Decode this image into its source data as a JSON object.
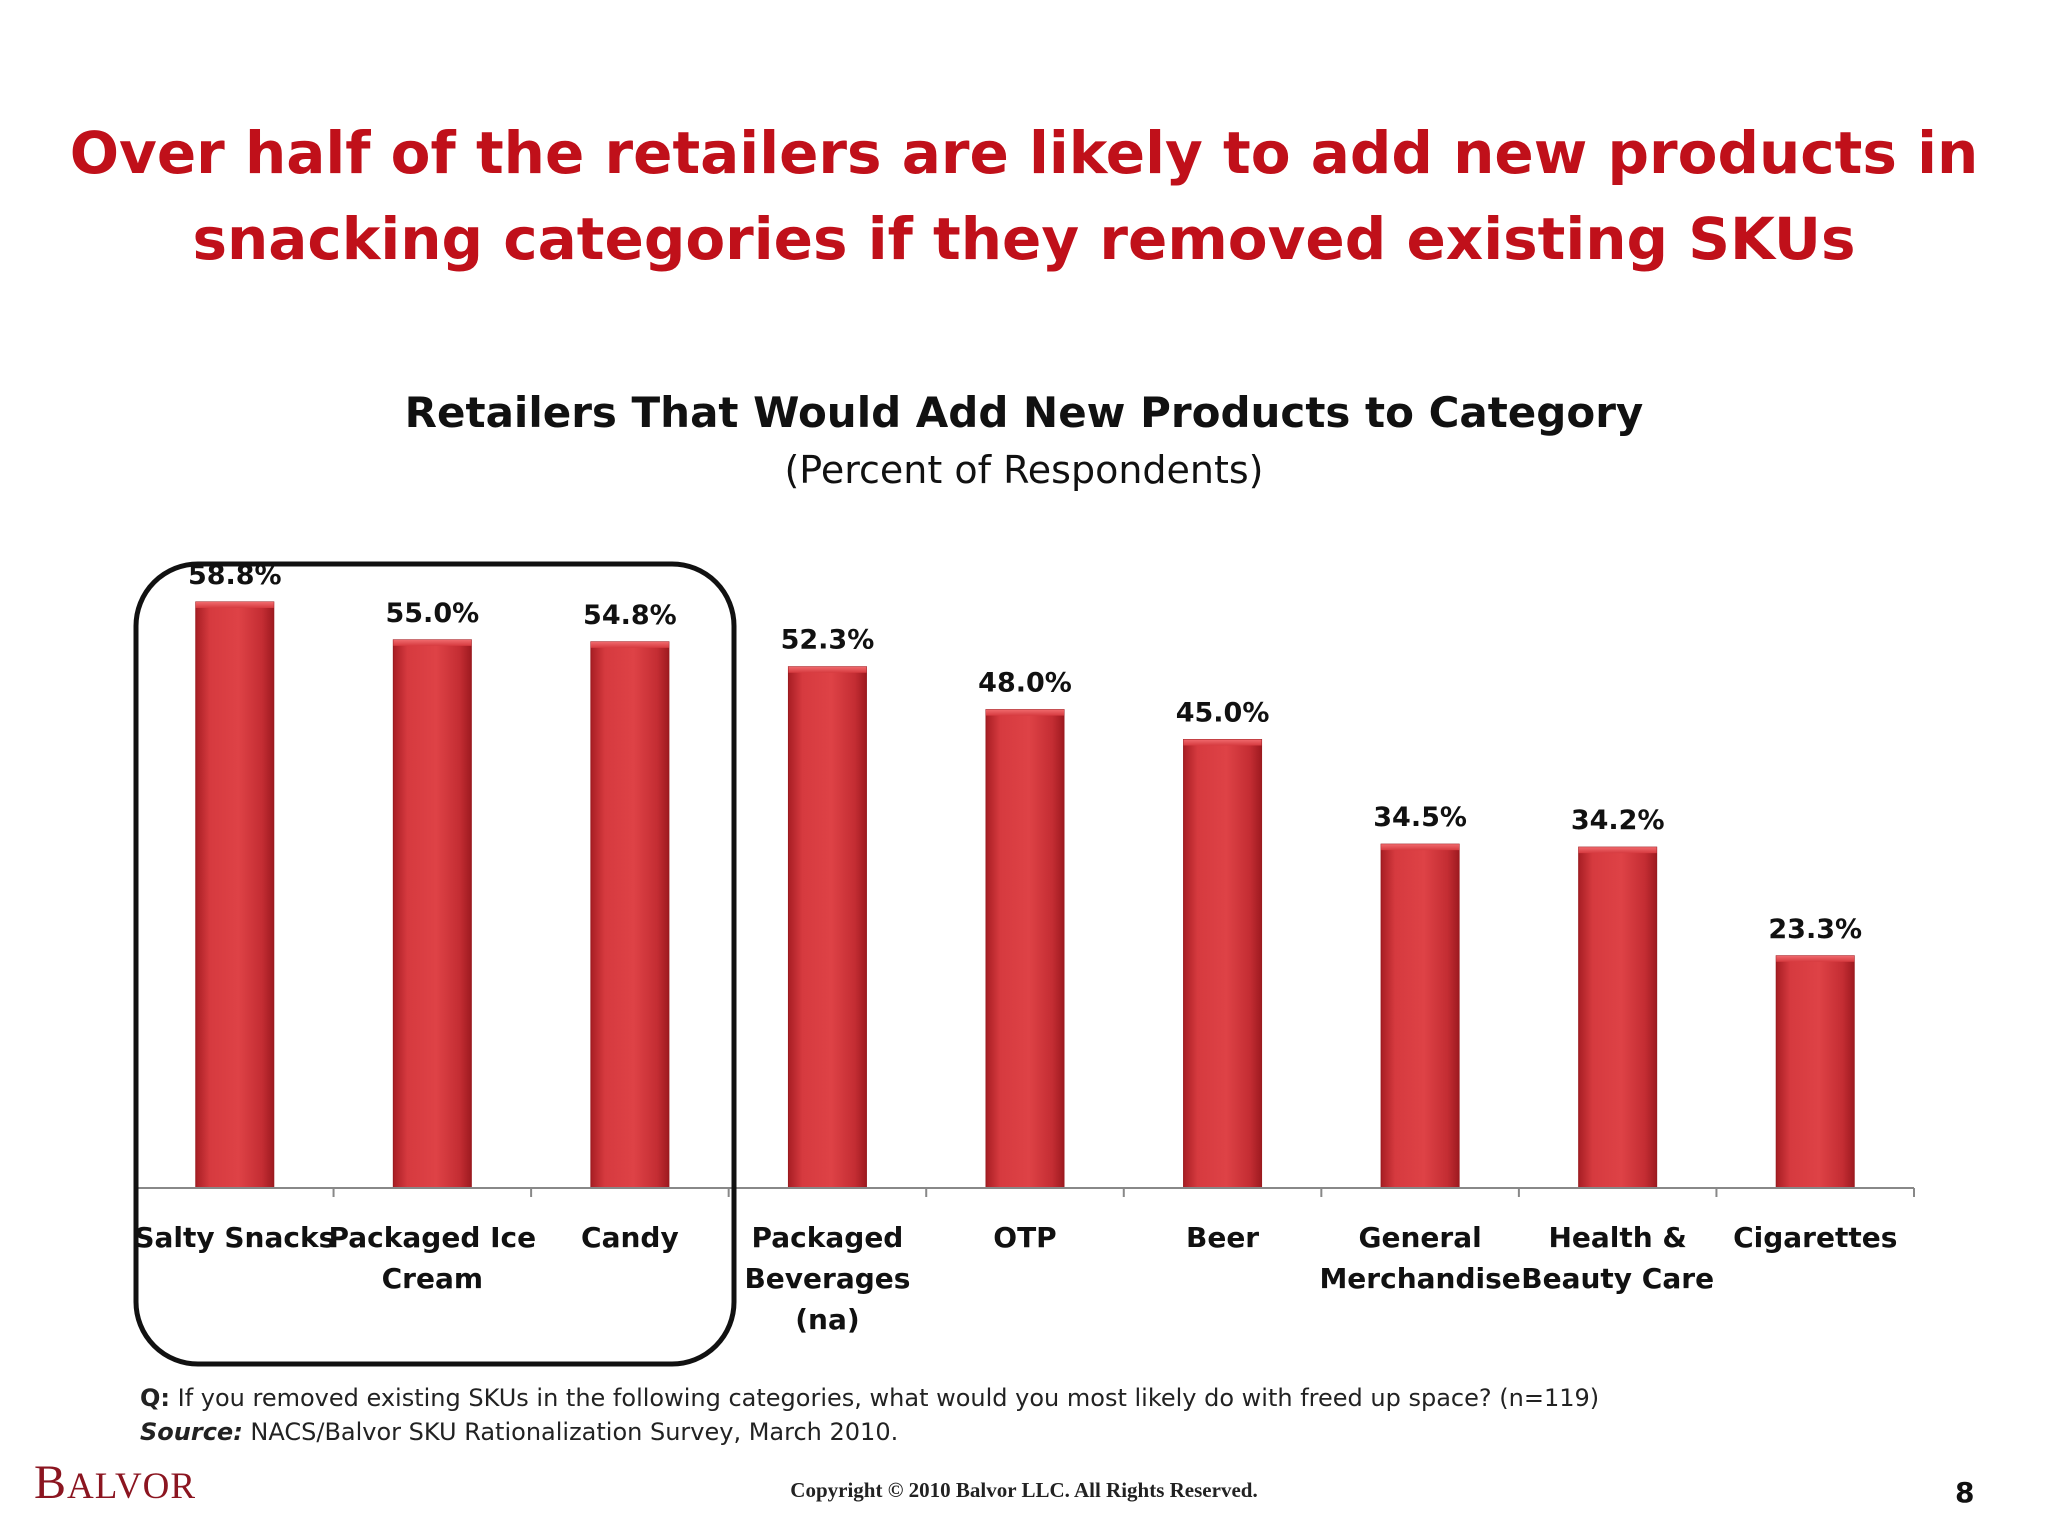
{
  "slide": {
    "title_line1": "Over half of the retailers are likely to add new products in",
    "title_line2": "snacking categories if they removed existing SKUs",
    "question_label": "Q:",
    "question_text": " If you removed existing SKUs in the following categories, what would you most likely do with freed up space?  (n=119)",
    "source_label": "Source:",
    "source_text": " NACS/Balvor SKU Rationalization Survey, March 2010.",
    "logo_first": "B",
    "logo_rest": "ALVOR",
    "copyright": "Copyright © 2010 Balvor LLC. All Rights Reserved.",
    "page_number": "8"
  },
  "colors": {
    "title": "#c0101a",
    "bar": "#d63a3f",
    "bar_dark": "#a81e24",
    "bar_light": "#e8575b",
    "logo": "#8b1520"
  },
  "chart_data": {
    "type": "bar",
    "title": "Retailers That Would Add New Products to Category",
    "subtitle": "(Percent of Respondents)",
    "categories": [
      [
        "Salty Snacks"
      ],
      [
        "Packaged Ice",
        "Cream"
      ],
      [
        "Candy"
      ],
      [
        "Packaged",
        "Beverages",
        "(na)"
      ],
      [
        "OTP"
      ],
      [
        "Beer"
      ],
      [
        "General",
        "Merchandise"
      ],
      [
        "Health &",
        "Beauty Care"
      ],
      [
        "Cigarettes"
      ]
    ],
    "values": [
      58.8,
      55.0,
      54.8,
      52.3,
      48.0,
      45.0,
      34.5,
      34.2,
      23.3
    ],
    "value_labels": [
      "58.8%",
      "55.0%",
      "54.8%",
      "52.3%",
      "48.0%",
      "45.0%",
      "34.5%",
      "34.2%",
      "23.3%"
    ],
    "ylim": [
      0,
      60
    ],
    "grid": false,
    "legend": "none",
    "highlighted_categories": [
      "Salty Snacks",
      "Packaged Ice Cream",
      "Candy"
    ]
  }
}
